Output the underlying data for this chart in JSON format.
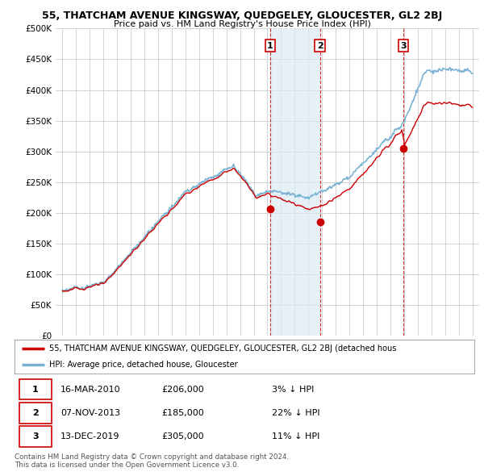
{
  "title": "55, THATCHAM AVENUE KINGSWAY, QUEDGELEY, GLOUCESTER, GL2 2BJ",
  "subtitle": "Price paid vs. HM Land Registry's House Price Index (HPI)",
  "hpi_color": "#7ab3d4",
  "hpi_fill_color": "#daeaf5",
  "price_color": "#cc0000",
  "annotation_color": "#cc0000",
  "background_color": "#ffffff",
  "grid_color": "#cccccc",
  "sale_dates": [
    2010.21,
    2013.85,
    2019.95
  ],
  "sale_prices": [
    206000,
    185000,
    305000
  ],
  "sale_labels": [
    "1",
    "2",
    "3"
  ],
  "legend_label_price": "55, THATCHAM AVENUE KINGSWAY, QUEDGELEY, GLOUCESTER, GL2 2BJ (detached hous",
  "legend_label_hpi": "HPI: Average price, detached house, Gloucester",
  "table_rows": [
    [
      "1",
      "16-MAR-2010",
      "£206,000",
      "3% ↓ HPI"
    ],
    [
      "2",
      "07-NOV-2013",
      "£185,000",
      "22% ↓ HPI"
    ],
    [
      "3",
      "13-DEC-2019",
      "£305,000",
      "11% ↓ HPI"
    ]
  ],
  "footnote": "Contains HM Land Registry data © Crown copyright and database right 2024.\nThis data is licensed under the Open Government Licence v3.0.",
  "ylim": [
    0,
    500000
  ],
  "yticks": [
    0,
    50000,
    100000,
    150000,
    200000,
    250000,
    300000,
    350000,
    400000,
    450000,
    500000
  ],
  "xlim_start": 1994.5,
  "xlim_end": 2025.5
}
